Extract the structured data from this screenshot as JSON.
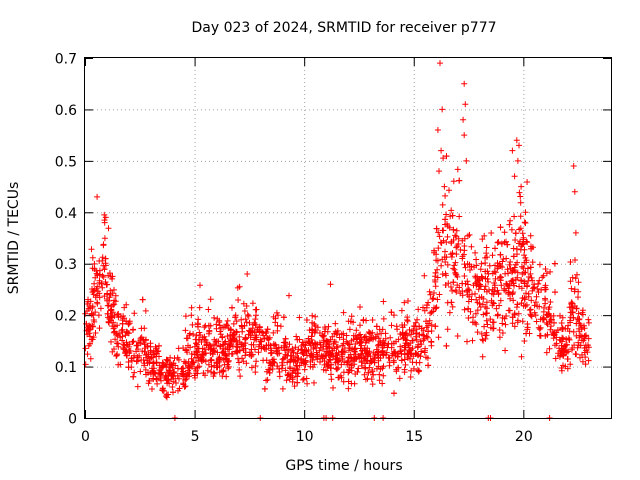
{
  "chart_data": {
    "type": "scatter",
    "title": "Day 023 of 2024, SRMTID for receiver p777",
    "xlabel": "GPS time / hours",
    "ylabel": "SRMTID / TECUs",
    "xlim": [
      0,
      24
    ],
    "ylim": [
      0,
      0.7
    ],
    "xticks": [
      0,
      5,
      10,
      15,
      20
    ],
    "xtick_labels": [
      "0",
      "5",
      "10",
      "15",
      "20"
    ],
    "yticks": [
      0,
      0.1,
      0.2,
      0.3,
      0.4,
      0.5,
      0.6,
      0.7
    ],
    "ytick_labels": [
      "0",
      "0.1",
      "0.2",
      "0.3",
      "0.4",
      "0.5",
      "0.6",
      "0.7"
    ],
    "grid": true,
    "marker": "+",
    "marker_color": "#ff0000",
    "series": [
      {
        "name": "SRMTID",
        "color": "#ff0000",
        "profile": {
          "x": [
            0.0,
            0.3,
            0.6,
            0.9,
            1.1,
            1.5,
            2.0,
            2.5,
            3.0,
            3.5,
            4.0,
            4.5,
            5.0,
            5.5,
            6.0,
            6.5,
            7.0,
            7.5,
            8.0,
            8.5,
            9.0,
            9.5,
            10.0,
            10.5,
            11.0,
            11.5,
            12.0,
            12.5,
            13.0,
            13.5,
            14.0,
            14.5,
            15.0,
            15.5,
            15.8,
            16.1,
            16.4,
            16.8,
            17.2,
            17.6,
            18.0,
            18.5,
            19.0,
            19.5,
            20.0,
            20.5,
            21.0,
            21.3,
            21.6,
            22.0,
            22.3,
            22.6,
            23.0
          ],
          "center": [
            0.17,
            0.2,
            0.26,
            0.3,
            0.22,
            0.17,
            0.14,
            0.13,
            0.11,
            0.09,
            0.08,
            0.1,
            0.13,
            0.14,
            0.13,
            0.14,
            0.15,
            0.16,
            0.14,
            0.13,
            0.12,
            0.11,
            0.12,
            0.14,
            0.13,
            0.12,
            0.12,
            0.13,
            0.13,
            0.14,
            0.13,
            0.14,
            0.15,
            0.16,
            0.17,
            0.3,
            0.33,
            0.31,
            0.27,
            0.26,
            0.25,
            0.24,
            0.25,
            0.27,
            0.28,
            0.25,
            0.22,
            0.18,
            0.14,
            0.14,
            0.22,
            0.16,
            0.14
          ],
          "spread": [
            0.06,
            0.07,
            0.08,
            0.08,
            0.08,
            0.06,
            0.05,
            0.05,
            0.05,
            0.04,
            0.04,
            0.05,
            0.05,
            0.05,
            0.05,
            0.05,
            0.05,
            0.06,
            0.05,
            0.05,
            0.05,
            0.05,
            0.05,
            0.05,
            0.05,
            0.05,
            0.05,
            0.05,
            0.05,
            0.05,
            0.05,
            0.05,
            0.06,
            0.06,
            0.07,
            0.12,
            0.13,
            0.12,
            0.1,
            0.1,
            0.09,
            0.09,
            0.1,
            0.11,
            0.11,
            0.09,
            0.08,
            0.06,
            0.05,
            0.05,
            0.09,
            0.06,
            0.05
          ],
          "point_count": 2300
        },
        "peaks": [
          {
            "x": 0.55,
            "y": 0.43
          },
          {
            "x": 0.95,
            "y": 0.39
          },
          {
            "x": 0.9,
            "y": 0.38
          },
          {
            "x": 7.4,
            "y": 0.28
          },
          {
            "x": 11.2,
            "y": 0.26
          },
          {
            "x": 16.2,
            "y": 0.69
          },
          {
            "x": 16.3,
            "y": 0.6
          },
          {
            "x": 16.1,
            "y": 0.56
          },
          {
            "x": 16.25,
            "y": 0.52
          },
          {
            "x": 16.15,
            "y": 0.48
          },
          {
            "x": 16.4,
            "y": 0.45
          },
          {
            "x": 17.3,
            "y": 0.65
          },
          {
            "x": 17.35,
            "y": 0.61
          },
          {
            "x": 17.25,
            "y": 0.58
          },
          {
            "x": 17.3,
            "y": 0.55
          },
          {
            "x": 17.4,
            "y": 0.5
          },
          {
            "x": 19.5,
            "y": 0.52
          },
          {
            "x": 19.7,
            "y": 0.54
          },
          {
            "x": 19.8,
            "y": 0.53
          },
          {
            "x": 19.75,
            "y": 0.5
          },
          {
            "x": 19.6,
            "y": 0.47
          },
          {
            "x": 19.9,
            "y": 0.45
          },
          {
            "x": 20.1,
            "y": 0.4
          },
          {
            "x": 22.3,
            "y": 0.49
          },
          {
            "x": 22.35,
            "y": 0.44
          },
          {
            "x": 22.4,
            "y": 0.36
          }
        ],
        "zero_points": [
          4.1,
          8.0,
          10.9,
          11.0,
          11.3,
          13.2,
          13.6,
          18.4,
          18.5,
          21.2
        ]
      }
    ]
  }
}
